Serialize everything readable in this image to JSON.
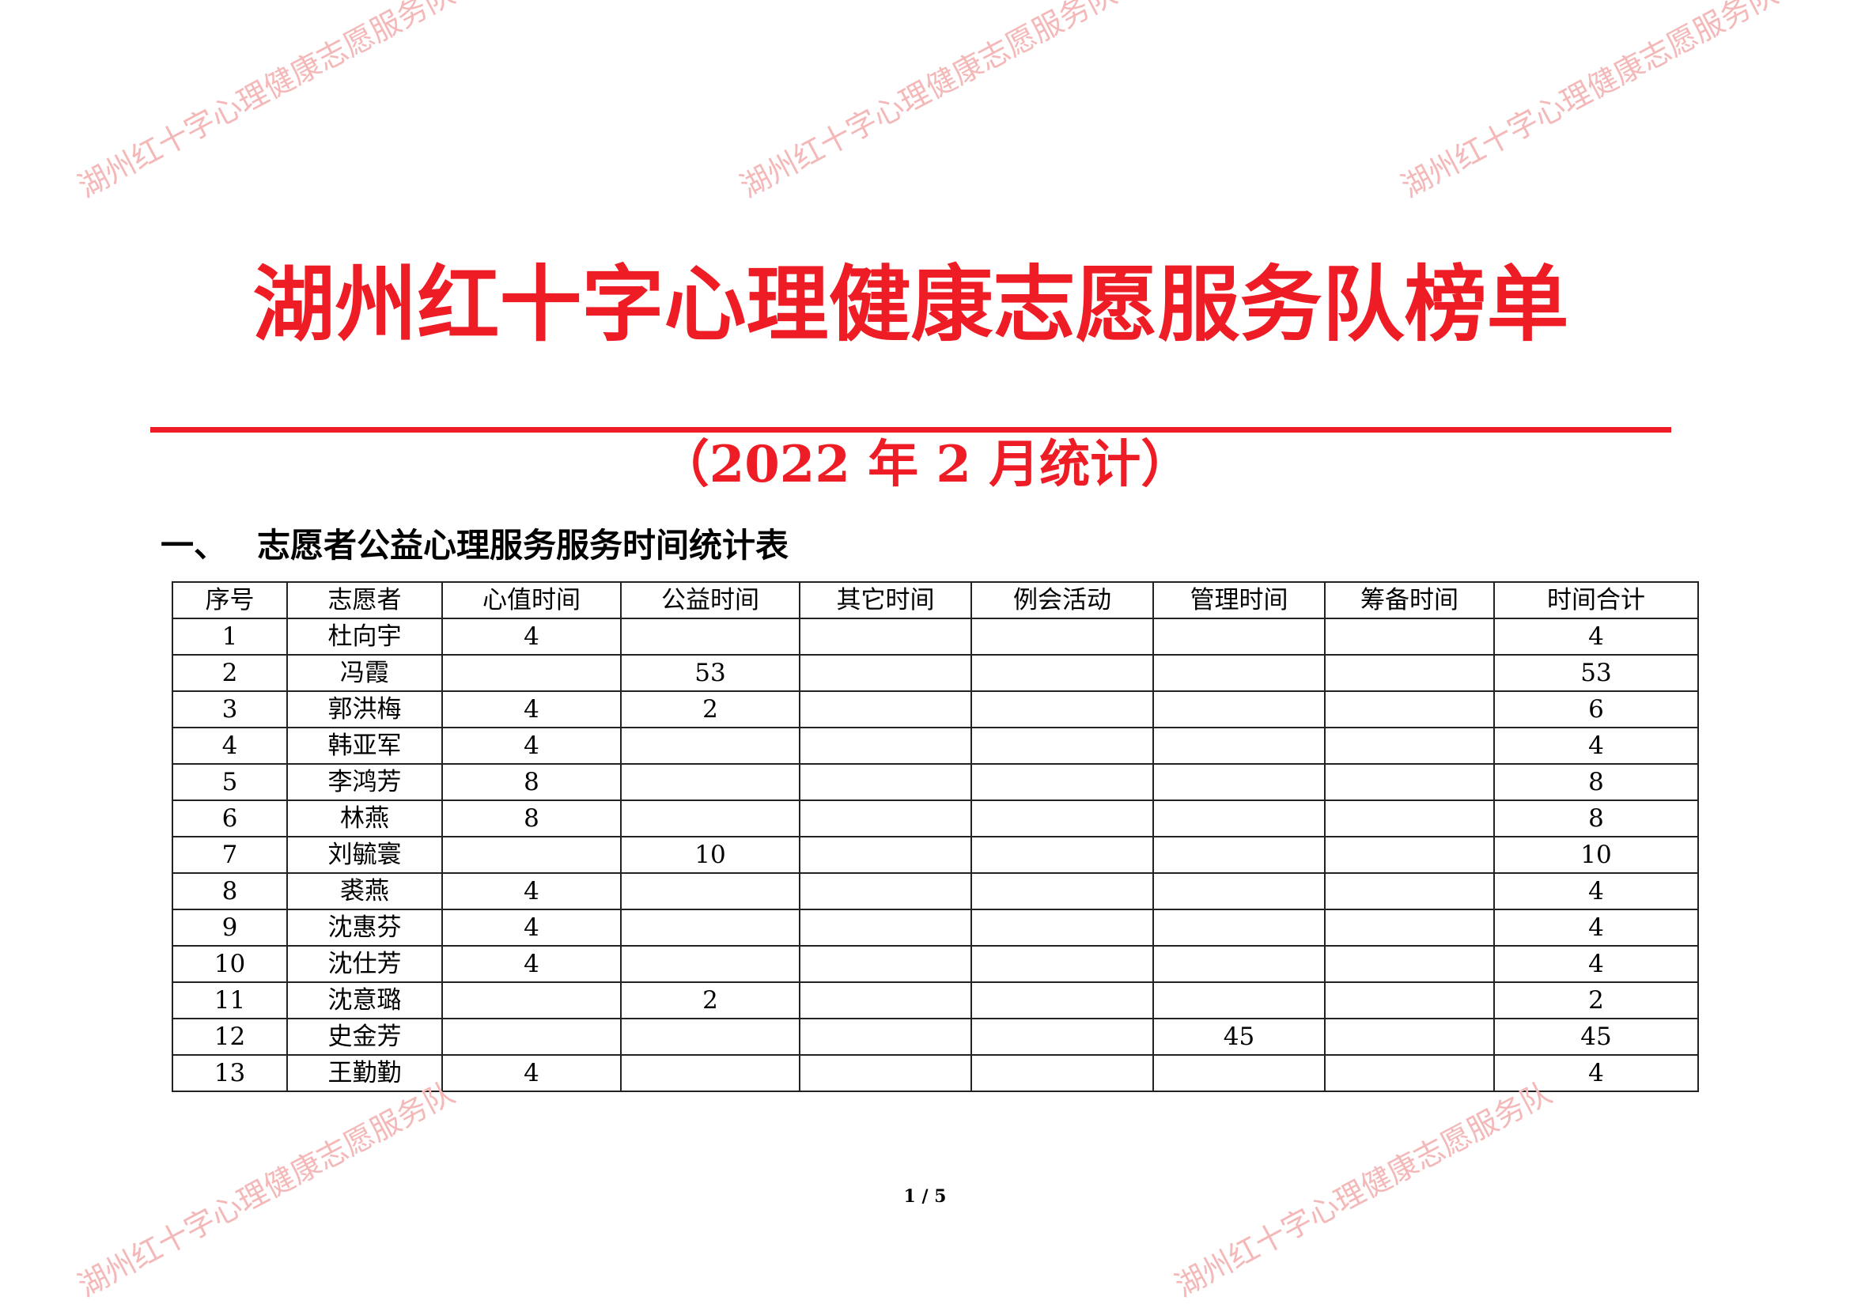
{
  "watermark": "湖州红十字心理健康志愿服务队",
  "header": {
    "title": "湖州红十字心理健康志愿服务队榜单",
    "subtitle": "（2022 年 2 月统计）"
  },
  "section": {
    "number": "一、",
    "title": "志愿者公益心理服务服务时间统计表"
  },
  "table": {
    "columns": [
      "序号",
      "志愿者",
      "心值时间",
      "公益时间",
      "其它时间",
      "例会活动",
      "管理时间",
      "筹备时间",
      "时间合计"
    ],
    "rows": [
      [
        "1",
        "杜向宇",
        "4",
        "",
        "",
        "",
        "",
        "",
        "4"
      ],
      [
        "2",
        "冯霞",
        "",
        "53",
        "",
        "",
        "",
        "",
        "53"
      ],
      [
        "3",
        "郭洪梅",
        "4",
        "2",
        "",
        "",
        "",
        "",
        "6"
      ],
      [
        "4",
        "韩亚军",
        "4",
        "",
        "",
        "",
        "",
        "",
        "4"
      ],
      [
        "5",
        "李鸿芳",
        "8",
        "",
        "",
        "",
        "",
        "",
        "8"
      ],
      [
        "6",
        "林燕",
        "8",
        "",
        "",
        "",
        "",
        "",
        "8"
      ],
      [
        "7",
        "刘毓寰",
        "",
        "10",
        "",
        "",
        "",
        "",
        "10"
      ],
      [
        "8",
        "裘燕",
        "4",
        "",
        "",
        "",
        "",
        "",
        "4"
      ],
      [
        "9",
        "沈惠芬",
        "4",
        "",
        "",
        "",
        "",
        "",
        "4"
      ],
      [
        "10",
        "沈仕芳",
        "4",
        "",
        "",
        "",
        "",
        "",
        "4"
      ],
      [
        "11",
        "沈意璐",
        "",
        "2",
        "",
        "",
        "",
        "",
        "2"
      ],
      [
        "12",
        "史金芳",
        "",
        "",
        "",
        "",
        "45",
        "",
        "45"
      ],
      [
        "13",
        "王勤勤",
        "4",
        "",
        "",
        "",
        "",
        "",
        "4"
      ]
    ]
  },
  "footer": {
    "page": "1 / 5"
  },
  "colors": {
    "accent": "#ee1c25",
    "watermark": "#f4b8b8"
  }
}
